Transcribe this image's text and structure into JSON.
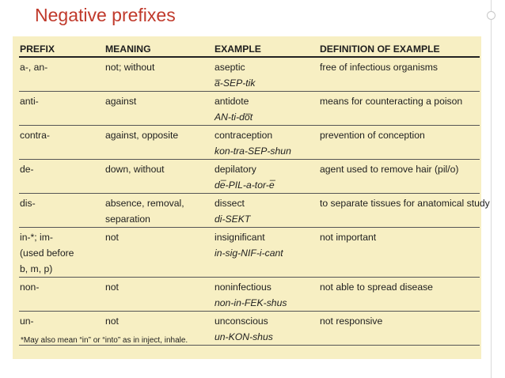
{
  "slide": {
    "title": "Negative prefixes"
  },
  "table": {
    "headers": [
      "PREFIX",
      "MEANING",
      "EXAMPLE",
      "DEFINITION OF EXAMPLE"
    ],
    "rows": [
      {
        "prefix": [
          "a-, an-"
        ],
        "meaning": [
          "not; without"
        ],
        "example": "aseptic",
        "pronunciation": "a̅-SEP-tik",
        "definition": "free of infectious organisms"
      },
      {
        "prefix": [
          "anti-"
        ],
        "meaning": [
          "against"
        ],
        "example": "antidote",
        "pronunciation": "AN-ti-do̅t",
        "definition": "means for counteracting a poison"
      },
      {
        "prefix": [
          "contra-"
        ],
        "meaning": [
          "against, opposite"
        ],
        "example": "contraception",
        "pronunciation": "kon-tra-SEP-shun",
        "definition": "prevention of conception"
      },
      {
        "prefix": [
          "de-"
        ],
        "meaning": [
          "down, without"
        ],
        "example": "depilatory",
        "pronunciation": "de̅-PIL-a-tor-e̅",
        "definition": "agent used to remove hair (pil/o)"
      },
      {
        "prefix": [
          "dis-"
        ],
        "meaning": [
          "absence, removal,",
          "separation"
        ],
        "example": "dissect",
        "pronunciation": "di-SEKT",
        "definition": "to separate tissues for anatomical study"
      },
      {
        "prefix": [
          "in-*; im-",
          "(used before",
          "b, m, p)"
        ],
        "meaning": [
          "not"
        ],
        "example": "insignificant",
        "pronunciation": "in-sig-NIF-i-cant",
        "definition": "not important"
      },
      {
        "prefix": [
          "non-"
        ],
        "meaning": [
          "not"
        ],
        "example": "noninfectious",
        "pronunciation": "non-in-FEK-shus",
        "definition": "not able to spread disease"
      },
      {
        "prefix": [
          "un-"
        ],
        "meaning": [
          "not"
        ],
        "example": "unconscious",
        "pronunciation": "un-KON-shus",
        "definition": "not responsive"
      }
    ],
    "footnote": "*May also mean “in” or “into” as in inject, inhale."
  }
}
